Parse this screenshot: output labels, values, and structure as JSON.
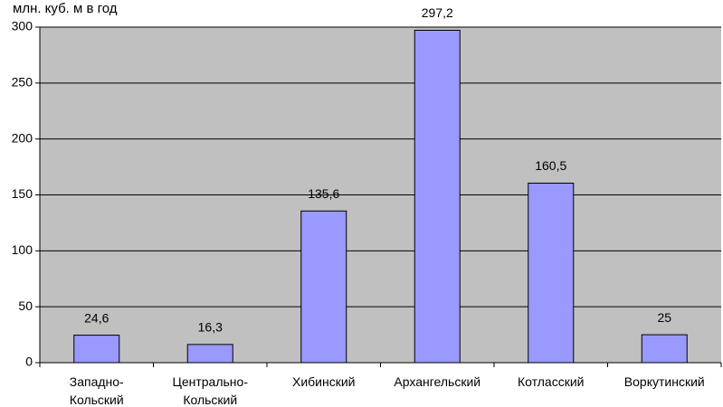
{
  "chart_data": {
    "type": "bar",
    "title": "млн. куб. м в год",
    "categories": [
      "Западно-Кольский",
      "Центрально-Кольский",
      "Хибинский",
      "Архангельский",
      "Котласский",
      "Воркутинский"
    ],
    "values": [
      24.6,
      16.3,
      135.6,
      297.2,
      160.5,
      25
    ],
    "value_labels": [
      "24,6",
      "16,3",
      "135,6",
      "297,2",
      "160,5",
      "25"
    ],
    "color": "#9999ff",
    "plot_background": "#c0c0c0",
    "ylim": [
      0,
      300
    ],
    "yticks": [
      0,
      50,
      100,
      150,
      200,
      250,
      300
    ],
    "grid": true
  }
}
